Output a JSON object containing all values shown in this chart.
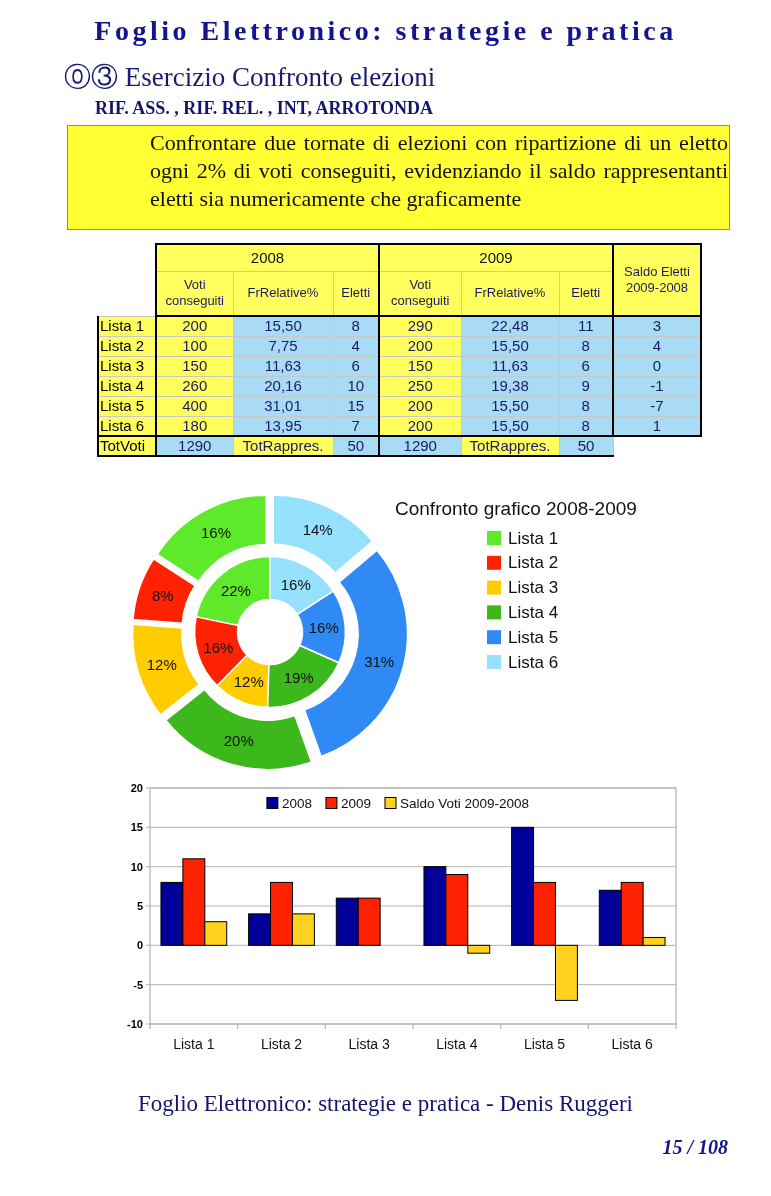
{
  "chart_data": [
    {
      "type": "other",
      "title": "Foglio Elettronico: strategie e pratica",
      "subtitle": "⓪③ Esercizio Confronto elezioni",
      "annotations": [
        "RIF. ASS. , RIF. REL. , INT, ARROTONDA",
        "Confrontare due tornate di elezioni con ripartizione di un eletto ogni 2% di voti conseguiti, evidenziando il saldo rappresentanti eletti sia numericamente che graficamente",
        "Foglio Elettronico: strategie e pratica - Denis Ruggeri",
        "15 / 108"
      ]
    },
    {
      "type": "other",
      "annotations": [
        "2008",
        "2009"
      ],
      "categories": [
        "Voti conseguiti",
        "FrRelative%",
        "Eletti",
        "Voti conseguiti",
        "FrRelative%",
        "Eletti",
        "Saldo Eletti 2009-2008"
      ],
      "y_categories": [
        "Lista 1",
        "Lista 2",
        "Lista 3",
        "Lista 4",
        "Lista 5",
        "Lista 6",
        "TotVoti"
      ],
      "cell_labels": [
        [
          "200",
          "15,50",
          "8",
          "290",
          "22,48",
          "11",
          "3"
        ],
        [
          "100",
          "7,75",
          "4",
          "200",
          "15,50",
          "8",
          "4"
        ],
        [
          "150",
          "11,63",
          "6",
          "150",
          "11,63",
          "6",
          "0"
        ],
        [
          "260",
          "20,16",
          "10",
          "250",
          "19,38",
          "9",
          "-1"
        ],
        [
          "400",
          "31,01",
          "15",
          "200",
          "15,50",
          "8",
          "-7"
        ],
        [
          "180",
          "13,95",
          "7",
          "200",
          "15,50",
          "8",
          "1"
        ],
        [
          "1290",
          "TotRappres.",
          "50",
          "1290",
          "TotRappres.",
          "50",
          null
        ]
      ]
    },
    {
      "type": "donut",
      "title": "Confronto grafico 2008-2009",
      "categories": [
        "Lista 1",
        "Lista 2",
        "Lista 3",
        "Lista 4",
        "Lista 5",
        "Lista 6"
      ],
      "colors": [
        "#5ee92a",
        "#ff2200",
        "#ffcc00",
        "#3cb81c",
        "#2f8af5",
        "#96e1fd"
      ],
      "series": [
        {
          "values": [
            16,
            8,
            12,
            20,
            31,
            14
          ],
          "value_labels": [
            "16%",
            "8%",
            "12%",
            "20%",
            "31%",
            "14%"
          ]
        },
        {
          "values": [
            22,
            16,
            12,
            19,
            16,
            16
          ],
          "value_labels": [
            "22%",
            "16%",
            "12%",
            "19%",
            "16%",
            "16%"
          ]
        }
      ],
      "legend": "right"
    },
    {
      "type": "bar",
      "categories": [
        "Lista 1",
        "Lista 2",
        "Lista 3",
        "Lista 4",
        "Lista 5",
        "Lista 6"
      ],
      "series": [
        {
          "name": "2008",
          "color": "#000099",
          "values": [
            8,
            4,
            6,
            10,
            15,
            7
          ]
        },
        {
          "name": "2009",
          "color": "#ff2200",
          "values": [
            11,
            8,
            6,
            9,
            8,
            8
          ]
        },
        {
          "name": "Saldo Voti 2009-2008",
          "color": "#ffd21f",
          "values": [
            3,
            4,
            0,
            -1,
            -7,
            1
          ]
        }
      ],
      "ylim": [
        -10,
        20
      ],
      "yticks": [
        -10,
        -5,
        0,
        5,
        10,
        15,
        20
      ],
      "grid": "y",
      "legend": "top"
    }
  ]
}
